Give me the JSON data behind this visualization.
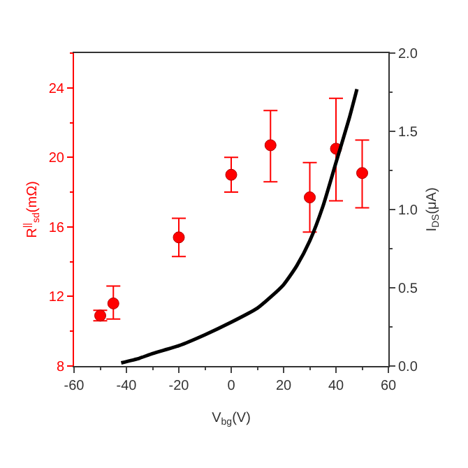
{
  "chart_data": {
    "type": "scatter",
    "xlabel": "V$_{bg}$(V)",
    "ylabel": "R$^{||}$$_{sd}$(mΩ)",
    "y2label": "I$_{DS}$(μA)",
    "xlim": [
      -60,
      60
    ],
    "xticks": [
      -60,
      -40,
      -20,
      0,
      20,
      40,
      60
    ],
    "ylim": [
      8,
      26
    ],
    "yticks": [
      8,
      12,
      16,
      20,
      24
    ],
    "y2lim": [
      0,
      2
    ],
    "y2ticks": [
      {
        "value": 0,
        "label": "0.0"
      },
      {
        "value": 0.5,
        "label": "0.5"
      },
      {
        "value": 1,
        "label": "1.0"
      },
      {
        "value": 1.5,
        "label": "1.5"
      },
      {
        "value": 2,
        "label": "2.0"
      }
    ],
    "series": [
      {
        "type": "scatter",
        "color": "#ff0000",
        "x": [
          -50,
          -45,
          -20,
          0,
          15,
          30,
          40,
          50
        ],
        "values": [
          10.9,
          11.6,
          15.4,
          19.0,
          20.7,
          17.7,
          20.5,
          19.1
        ],
        "errors": [
          [
            10.6,
            11.2
          ],
          [
            10.7,
            12.6
          ],
          [
            14.3,
            16.5
          ],
          [
            18.0,
            20.0
          ],
          [
            18.6,
            22.7
          ],
          [
            15.7,
            19.7
          ],
          [
            17.5,
            23.4
          ],
          [
            17.1,
            21.0
          ]
        ]
      },
      {
        "type": "line",
        "axis": "y2",
        "color": "#000000",
        "marker": "none",
        "line_style": "solid",
        "x": [
          -42,
          -35,
          -30,
          -20,
          -10,
          0,
          10,
          15,
          20,
          25,
          30,
          35,
          40,
          45,
          48
        ],
        "values": [
          0.02,
          0.05,
          0.08,
          0.13,
          0.2,
          0.28,
          0.37,
          0.44,
          0.52,
          0.64,
          0.8,
          1.02,
          1.3,
          1.58,
          1.77
        ]
      }
    ]
  }
}
